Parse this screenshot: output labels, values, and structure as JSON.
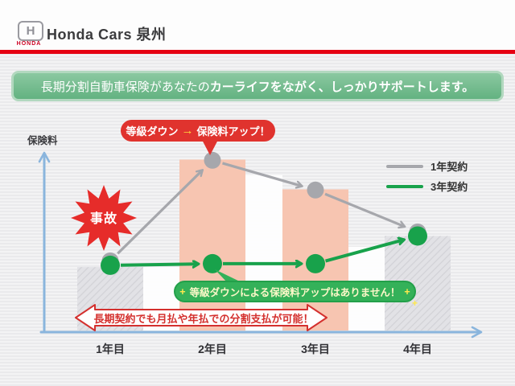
{
  "header": {
    "brand": "HONDA",
    "logo_mark": "H",
    "dealer_name": "Honda Cars 泉州"
  },
  "banner": {
    "text_normal": "長期分割自動車保険があなたの",
    "text_bold": "カーライフをながく、しっかりサポートします。"
  },
  "chart_data": {
    "type": "line",
    "title": "",
    "ylabel": "保険料",
    "xlabel": "",
    "categories": [
      "1年目",
      "2年目",
      "3年目",
      "4年目"
    ],
    "series": [
      {
        "name": "1年契約",
        "color": "#a6a7ac",
        "values": [
          100,
          253,
          209,
          147
        ]
      },
      {
        "name": "3年契約",
        "color": "#18a24b",
        "values": [
          100,
          100,
          100,
          141
        ]
      }
    ],
    "bars": [
      {
        "category": "1年目",
        "style": "hatched",
        "value": 95
      },
      {
        "category": "2年目",
        "style": "pink",
        "value": 254
      },
      {
        "category": "3年目",
        "style": "pink",
        "value": 210
      },
      {
        "category": "4年目",
        "style": "hatched",
        "value": 141
      }
    ],
    "gap_bars": [
      {
        "after": "1年目",
        "style": "white",
        "value": 95
      },
      {
        "after": "2年目",
        "style": "white",
        "value": 231
      },
      {
        "after": "3年目",
        "style": "white",
        "value": 125
      }
    ],
    "ylim": [
      0,
      270
    ],
    "grid": false,
    "legend_position": "top-right"
  },
  "annotations": {
    "accident_label": "事故",
    "top_bubble": {
      "left": "等級ダウン",
      "arrow": "→",
      "right": "保険料アップ！"
    },
    "bottom_bubble": {
      "text": "等級ダウンによる保険料アップはありません！",
      "sparkle": "+"
    },
    "payment_banner": "長期契約でも月払や年払での分割支払が可能！"
  },
  "colors": {
    "honda_red": "#e60012",
    "banner_green": "#6fb888",
    "line_1yr": "#a6a7ac",
    "line_3yr": "#18a24b",
    "bar_pink": "#f7c5b1",
    "bar_hatch_base": "#e2e2e6",
    "bar_hatch_line": "#d2d2d7",
    "bar_white": "#fefefe",
    "axis_blue": "#8ab5dd",
    "alert_red": "#e0332e",
    "bubble_green": "#34b159",
    "arrow_gold": "#ffd83d",
    "burst_red": "#e62c2a"
  }
}
